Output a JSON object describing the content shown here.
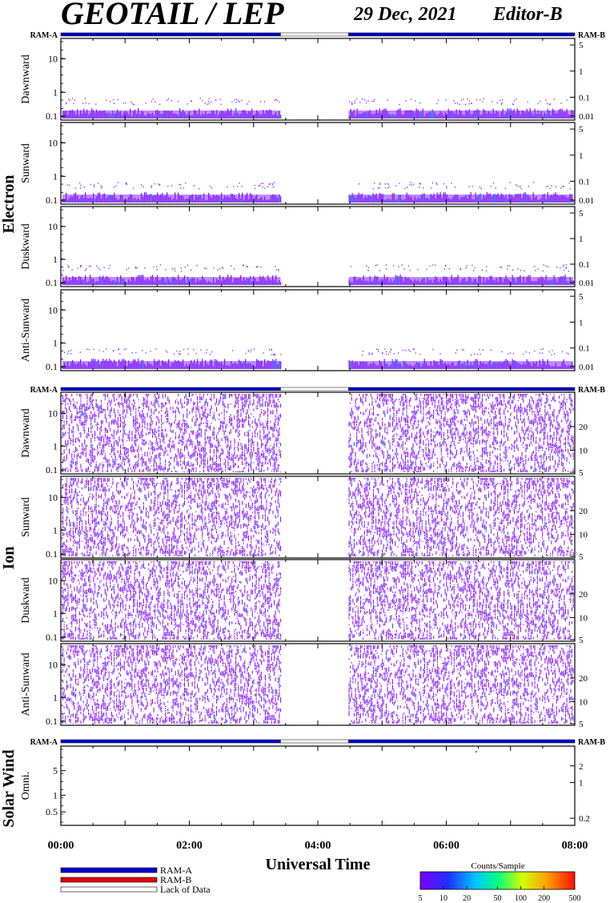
{
  "header": {
    "title": "GEOTAIL / LEP",
    "date": "29 Dec, 2021",
    "editor": "Editor-B"
  },
  "mode_labels": {
    "left": "RAM-A",
    "right": "RAM-B"
  },
  "groups": {
    "electron": "Electron",
    "ion": "Ion",
    "solar_wind": "Solar Wind"
  },
  "panel_labels": {
    "dawnward": "Dawnward",
    "sunward": "Sunward",
    "duskward": "Duskward",
    "anti_sunward": "Anti-Sunward",
    "omni": "Omni."
  },
  "x_axis": {
    "label": "Universal Time",
    "ticks": [
      "00:00",
      "02:00",
      "04:00",
      "06:00",
      "08:00"
    ]
  },
  "legend": {
    "items": [
      "RAM-A",
      "RAM-B",
      "Lack of Data"
    ],
    "colors": [
      "#0000cc",
      "#dd0000",
      "#ffffff"
    ]
  },
  "colorbar": {
    "title": "Counts/Sample",
    "ticks": [
      "5",
      "10",
      "20",
      "50",
      "100",
      "200",
      "500"
    ]
  },
  "chart_data": {
    "type": "heatmap",
    "x_range_hours": [
      0,
      8
    ],
    "data_gap_hours": [
      3.42,
      4.48
    ],
    "mode_bar": "RAM-A throughout; no data 03:25–04:29",
    "panels": [
      {
        "group": "Electron",
        "name": "Dawnward",
        "left_ticks": [
          "10",
          "1",
          "0.1"
        ],
        "right_ticks": [
          "5",
          "1",
          "0.1",
          "0.01"
        ]
      },
      {
        "group": "Electron",
        "name": "Sunward",
        "left_ticks": [
          "10",
          "1",
          "0.1"
        ],
        "right_ticks": [
          "5",
          "1",
          "0.1",
          "0.01"
        ]
      },
      {
        "group": "Electron",
        "name": "Duskward",
        "left_ticks": [
          "10",
          "1",
          "0.1"
        ],
        "right_ticks": [
          "5",
          "1",
          "0.1",
          "0.01"
        ]
      },
      {
        "group": "Electron",
        "name": "Anti-Sunward",
        "left_ticks": [
          "10",
          "1",
          "0.1"
        ],
        "right_ticks": [
          "5",
          "1",
          "0.1",
          "0.01"
        ]
      },
      {
        "group": "Ion",
        "name": "Dawnward",
        "left_ticks": [
          "10",
          "1",
          "0.1"
        ],
        "right_ticks": [
          "20",
          "10",
          "5"
        ]
      },
      {
        "group": "Ion",
        "name": "Sunward",
        "left_ticks": [
          "10",
          "1",
          "0.1"
        ],
        "right_ticks": [
          "20",
          "10",
          "5"
        ]
      },
      {
        "group": "Ion",
        "name": "Duskward",
        "left_ticks": [
          "10",
          "1",
          "0.1"
        ],
        "right_ticks": [
          "20",
          "10",
          "5"
        ]
      },
      {
        "group": "Ion",
        "name": "Anti-Sunward",
        "left_ticks": [
          "10",
          "1",
          "0.1"
        ],
        "right_ticks": [
          "20",
          "10",
          "5"
        ]
      },
      {
        "group": "Solar Wind",
        "name": "Omni.",
        "left_ticks": [
          "5",
          "1",
          "0.5"
        ],
        "right_ticks": [
          "2",
          "1",
          "0.2"
        ]
      }
    ],
    "colorscale": [
      5,
      500
    ],
    "xlabel": "Universal Time"
  }
}
